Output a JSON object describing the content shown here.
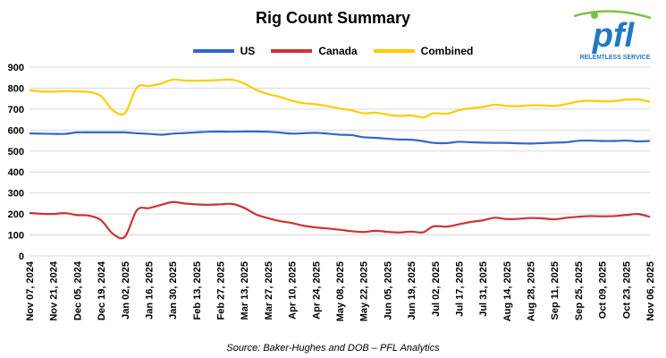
{
  "chart_data": {
    "type": "line",
    "title": "Rig Count Summary",
    "source": "Source: Baker-Hughes and DOB – PFL Analytics",
    "xlabel": "",
    "ylabel": "",
    "ylim": [
      0,
      900
    ],
    "yticks": [
      0,
      100,
      200,
      300,
      400,
      500,
      600,
      700,
      800,
      900
    ],
    "grid": "horizontal",
    "legend_position": "top-center",
    "x_dates": [
      "2024-11-07",
      "2024-11-14",
      "2024-11-21",
      "2024-11-28",
      "2024-12-05",
      "2024-12-12",
      "2024-12-19",
      "2024-12-26",
      "2025-01-02",
      "2025-01-09",
      "2025-01-16",
      "2025-01-23",
      "2025-01-30",
      "2025-02-06",
      "2025-02-13",
      "2025-02-20",
      "2025-02-27",
      "2025-03-06",
      "2025-03-13",
      "2025-03-20",
      "2025-03-27",
      "2025-04-03",
      "2025-04-10",
      "2025-04-17",
      "2025-04-24",
      "2025-05-01",
      "2025-05-08",
      "2025-05-15",
      "2025-05-22",
      "2025-05-29",
      "2025-06-05",
      "2025-06-12",
      "2025-06-19",
      "2025-06-26",
      "2025-07-02",
      "2025-07-10",
      "2025-07-17",
      "2025-07-24",
      "2025-07-31",
      "2025-08-07",
      "2025-08-14",
      "2025-08-21",
      "2025-08-28",
      "2025-09-04",
      "2025-09-11",
      "2025-09-18",
      "2025-09-25",
      "2025-10-02",
      "2025-10-09",
      "2025-10-16",
      "2025-10-23",
      "2025-10-30",
      "2025-11-06"
    ],
    "x_tick_labels": [
      "Nov 07, 2024",
      "Nov 21, 2024",
      "Dec 05, 2024",
      "Dec 19, 2024",
      "Jan 02, 2025",
      "Jan 16, 2025",
      "Jan 30, 2025",
      "Feb 13, 2025",
      "Feb 27, 2025",
      "Mar 13, 2025",
      "Mar 27, 2025",
      "Apr 10, 2025",
      "Apr 24, 2025",
      "May 08, 2025",
      "May 22, 2025",
      "Jun 05, 2025",
      "Jun 19, 2025",
      "Jul 02, 2025",
      "Jul 17, 2025",
      "Jul 31, 2025",
      "Aug 14, 2025",
      "Aug 28, 2025",
      "Sep 11, 2025",
      "Sep 25, 2025",
      "Oct 09, 2025",
      "Oct 23, 2025",
      "Nov 06, 2025"
    ],
    "series": [
      {
        "name": "US",
        "color": "#3366cc",
        "values": [
          584,
          583,
          582,
          582,
          589,
          589,
          589,
          589,
          589,
          585,
          582,
          578,
          583,
          586,
          589,
          592,
          593,
          592,
          593,
          593,
          592,
          588,
          583,
          585,
          587,
          583,
          578,
          576,
          566,
          563,
          559,
          555,
          554,
          547,
          539,
          538,
          544,
          542,
          540,
          539,
          539,
          537,
          536,
          538,
          540,
          542,
          549,
          550,
          548,
          548,
          550,
          546,
          548
        ]
      },
      {
        "name": "Canada",
        "color": "#cc3333",
        "values": [
          205,
          201,
          200,
          204,
          195,
          192,
          170,
          105,
          92,
          218,
          228,
          243,
          257,
          250,
          246,
          244,
          246,
          248,
          229,
          198,
          180,
          166,
          157,
          144,
          136,
          131,
          125,
          118,
          114,
          120,
          115,
          112,
          116,
          113,
          141,
          140,
          151,
          162,
          170,
          182,
          176,
          177,
          181,
          179,
          175,
          182,
          187,
          190,
          189,
          190,
          195,
          200,
          186
        ]
      },
      {
        "name": "Combined",
        "color": "#ffcc00",
        "values": [
          790,
          784,
          783,
          786,
          784,
          781,
          762,
          694,
          681,
          803,
          810,
          821,
          840,
          836,
          835,
          836,
          839,
          840,
          822,
          791,
          772,
          758,
          740,
          728,
          723,
          714,
          703,
          694,
          680,
          683,
          674,
          667,
          670,
          660,
          680,
          678,
          695,
          704,
          710,
          721,
          715,
          714,
          718,
          718,
          715,
          724,
          736,
          740,
          737,
          738,
          745,
          746,
          735
        ]
      }
    ]
  },
  "logo": {
    "text": "pfl",
    "tagline": "RELENTLESS SERVICE",
    "color": "#1f7ac1"
  }
}
